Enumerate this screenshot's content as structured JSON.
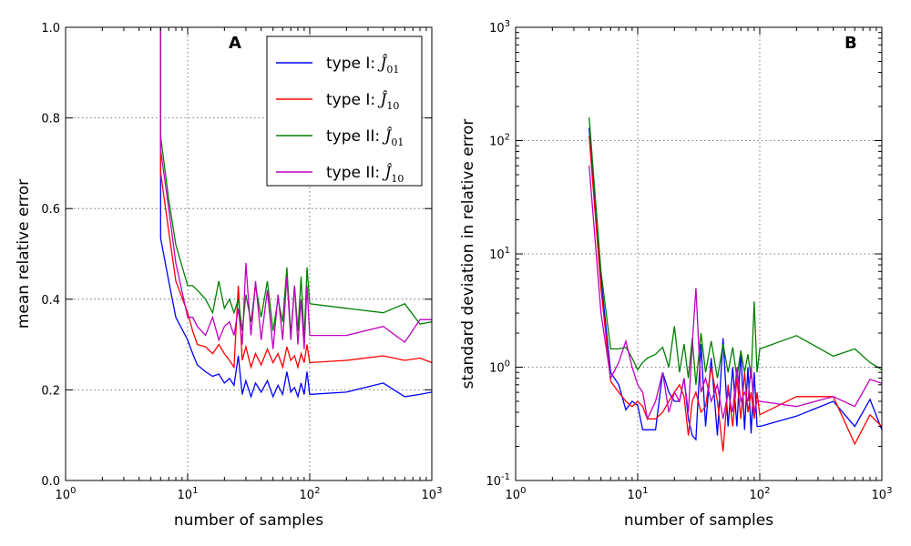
{
  "chart_data": [
    {
      "type": "line",
      "panel_label": "A",
      "xlabel": "number of samples",
      "ylabel": "mean relative error",
      "xscale": "log",
      "xlim": [
        1,
        1000
      ],
      "ylim": [
        0,
        1.0
      ],
      "grid": true,
      "legend_position": "top-right",
      "x_tick_labels": [
        {
          "base": "10",
          "exp": "0"
        },
        {
          "base": "10",
          "exp": "1"
        },
        {
          "base": "10",
          "exp": "2"
        },
        {
          "base": "10",
          "exp": "3"
        }
      ],
      "y_tick_labels": [
        "0.0",
        "0.2",
        "0.4",
        "0.6",
        "0.8",
        "1.0"
      ],
      "series": [
        {
          "name": "type I: Ĵ01",
          "label_text": "type I: ",
          "label_sub": "01",
          "color": "#0000ff",
          "x": [
            6,
            6,
            7,
            8,
            10,
            11,
            12,
            14,
            16,
            18,
            20,
            22,
            24,
            26,
            28,
            30,
            33,
            36,
            40,
            45,
            50,
            55,
            60,
            65,
            70,
            75,
            80,
            85,
            90,
            95,
            100,
            200,
            400,
            600,
            800,
            1000
          ],
          "y": [
            1.0,
            0.535,
            0.44,
            0.36,
            0.31,
            0.28,
            0.255,
            0.24,
            0.23,
            0.235,
            0.215,
            0.225,
            0.21,
            0.275,
            0.19,
            0.22,
            0.185,
            0.215,
            0.195,
            0.22,
            0.185,
            0.21,
            0.19,
            0.24,
            0.195,
            0.205,
            0.185,
            0.215,
            0.19,
            0.24,
            0.19,
            0.195,
            0.215,
            0.185,
            0.19,
            0.195
          ]
        },
        {
          "name": "type I: Ĵ10",
          "label_text": "type I: ",
          "label_sub": "10",
          "color": "#ff0000",
          "x": [
            6,
            6,
            7,
            8,
            10,
            11,
            12,
            14,
            16,
            18,
            20,
            22,
            24,
            26,
            28,
            30,
            33,
            36,
            40,
            45,
            50,
            55,
            60,
            65,
            70,
            75,
            80,
            85,
            90,
            95,
            100,
            200,
            400,
            600,
            800,
            1000
          ],
          "y": [
            1.0,
            0.68,
            0.55,
            0.44,
            0.37,
            0.33,
            0.3,
            0.295,
            0.28,
            0.3,
            0.28,
            0.265,
            0.25,
            0.43,
            0.265,
            0.295,
            0.25,
            0.28,
            0.255,
            0.29,
            0.26,
            0.28,
            0.25,
            0.295,
            0.265,
            0.275,
            0.25,
            0.28,
            0.26,
            0.3,
            0.26,
            0.265,
            0.275,
            0.265,
            0.27,
            0.26
          ]
        },
        {
          "name": "type II: Ĵ01",
          "label_text": "type II: ",
          "label_sub": "01",
          "color": "#008000",
          "x": [
            6,
            6,
            7,
            8,
            10,
            11,
            12,
            14,
            16,
            18,
            20,
            22,
            24,
            26,
            28,
            30,
            33,
            36,
            40,
            45,
            50,
            55,
            60,
            65,
            70,
            75,
            80,
            85,
            90,
            95,
            100,
            200,
            400,
            600,
            800,
            1000
          ],
          "y": [
            1.0,
            0.76,
            0.62,
            0.52,
            0.43,
            0.43,
            0.42,
            0.4,
            0.37,
            0.44,
            0.38,
            0.4,
            0.37,
            0.4,
            0.33,
            0.41,
            0.35,
            0.43,
            0.36,
            0.44,
            0.33,
            0.4,
            0.35,
            0.47,
            0.32,
            0.43,
            0.33,
            0.45,
            0.31,
            0.47,
            0.39,
            0.38,
            0.37,
            0.39,
            0.345,
            0.35
          ]
        },
        {
          "name": "type II: Ĵ10",
          "label_text": "type II: ",
          "label_sub": "10",
          "color": "#c000c0",
          "x": [
            6,
            6,
            7,
            8,
            10,
            11,
            12,
            14,
            16,
            18,
            20,
            22,
            24,
            26,
            28,
            30,
            33,
            36,
            40,
            45,
            50,
            55,
            60,
            65,
            70,
            75,
            80,
            85,
            90,
            95,
            100,
            200,
            400,
            600,
            800,
            1000
          ],
          "y": [
            1.0,
            0.73,
            0.6,
            0.48,
            0.36,
            0.36,
            0.34,
            0.32,
            0.36,
            0.31,
            0.34,
            0.35,
            0.32,
            0.38,
            0.3,
            0.48,
            0.32,
            0.44,
            0.31,
            0.42,
            0.29,
            0.41,
            0.31,
            0.45,
            0.31,
            0.43,
            0.3,
            0.4,
            0.29,
            0.43,
            0.32,
            0.32,
            0.34,
            0.305,
            0.355,
            0.355
          ]
        }
      ]
    },
    {
      "type": "line",
      "panel_label": "B",
      "xlabel": "number of samples",
      "ylabel": "standard deviation in relative error",
      "xscale": "log",
      "yscale": "log",
      "xlim": [
        1,
        1000
      ],
      "ylim": [
        0.1,
        1000
      ],
      "grid": true,
      "x_tick_labels": [
        {
          "base": "10",
          "exp": "0"
        },
        {
          "base": "10",
          "exp": "1"
        },
        {
          "base": "10",
          "exp": "2"
        },
        {
          "base": "10",
          "exp": "3"
        }
      ],
      "y_tick_labels": [
        {
          "base": "10",
          "exp": "-1"
        },
        {
          "base": "10",
          "exp": "0"
        },
        {
          "base": "10",
          "exp": "1"
        },
        {
          "base": "10",
          "exp": "2"
        },
        {
          "base": "10",
          "exp": "3"
        }
      ],
      "series": [
        {
          "name": "type I: Ĵ01",
          "color": "#0000ff",
          "x": [
            4,
            5,
            6,
            7,
            8,
            9,
            10,
            11,
            12,
            14,
            16,
            18,
            20,
            22,
            24,
            26,
            28,
            30,
            33,
            36,
            40,
            45,
            50,
            55,
            60,
            65,
            70,
            75,
            80,
            85,
            90,
            95,
            100,
            200,
            400,
            600,
            800,
            1000
          ],
          "y": [
            130,
            6,
            0.9,
            0.7,
            0.42,
            0.5,
            0.46,
            0.28,
            0.28,
            0.28,
            0.9,
            0.6,
            0.5,
            0.5,
            0.8,
            0.35,
            0.25,
            0.23,
            1.6,
            0.3,
            1.2,
            0.25,
            1.8,
            0.3,
            1.0,
            0.3,
            1.4,
            0.28,
            1.0,
            0.26,
            0.9,
            0.3,
            0.3,
            0.37,
            0.5,
            0.3,
            0.52,
            0.28
          ]
        },
        {
          "name": "type I: Ĵ10",
          "color": "#ff0000",
          "x": [
            4,
            5,
            6,
            7,
            8,
            9,
            10,
            11,
            12,
            14,
            16,
            18,
            20,
            22,
            24,
            26,
            28,
            30,
            33,
            36,
            40,
            45,
            50,
            55,
            60,
            65,
            70,
            75,
            80,
            85,
            90,
            95,
            100,
            200,
            400,
            600,
            800,
            1000
          ],
          "y": [
            110,
            5,
            0.75,
            0.6,
            0.5,
            0.45,
            0.5,
            0.45,
            0.35,
            0.35,
            0.4,
            0.5,
            0.6,
            0.7,
            0.55,
            0.25,
            0.5,
            0.6,
            0.4,
            0.45,
            1.0,
            0.5,
            0.18,
            0.7,
            0.3,
            0.8,
            0.35,
            0.9,
            0.4,
            0.6,
            0.35,
            0.6,
            0.38,
            0.55,
            0.55,
            0.21,
            0.38,
            0.3
          ]
        },
        {
          "name": "type II: Ĵ01",
          "color": "#008000",
          "x": [
            4,
            5,
            6,
            7,
            8,
            9,
            10,
            11,
            12,
            14,
            16,
            18,
            20,
            22,
            24,
            26,
            28,
            30,
            33,
            36,
            40,
            45,
            50,
            55,
            60,
            65,
            70,
            75,
            80,
            85,
            90,
            95,
            100,
            200,
            400,
            600,
            800,
            1000
          ],
          "y": [
            160,
            7,
            1.45,
            1.45,
            1.5,
            1.2,
            0.95,
            1.1,
            1.2,
            1.3,
            1.5,
            1.0,
            2.3,
            0.9,
            1.6,
            0.8,
            1.8,
            0.7,
            2.0,
            0.9,
            1.7,
            0.8,
            1.6,
            0.9,
            1.5,
            0.8,
            1.4,
            0.9,
            1.3,
            0.8,
            3.8,
            0.9,
            1.45,
            1.9,
            1.25,
            1.45,
            1.1,
            0.95
          ]
        },
        {
          "name": "type II: Ĵ10",
          "color": "#c000c0",
          "x": [
            4,
            5,
            6,
            7,
            8,
            9,
            10,
            11,
            12,
            14,
            16,
            18,
            20,
            22,
            24,
            26,
            28,
            30,
            33,
            36,
            40,
            45,
            50,
            55,
            60,
            65,
            70,
            75,
            80,
            85,
            90,
            95,
            100,
            200,
            400,
            600,
            800,
            1000
          ],
          "y": [
            60,
            3,
            0.8,
            1.1,
            1.7,
            1.0,
            0.7,
            0.6,
            0.35,
            0.5,
            0.9,
            0.4,
            0.6,
            0.5,
            0.8,
            0.4,
            1.6,
            5.0,
            0.6,
            0.8,
            0.5,
            0.7,
            0.35,
            0.6,
            0.4,
            1.0,
            0.5,
            0.6,
            0.5,
            1.0,
            0.4,
            0.5,
            0.5,
            0.45,
            0.55,
            0.45,
            0.78,
            0.72
          ]
        }
      ]
    }
  ]
}
